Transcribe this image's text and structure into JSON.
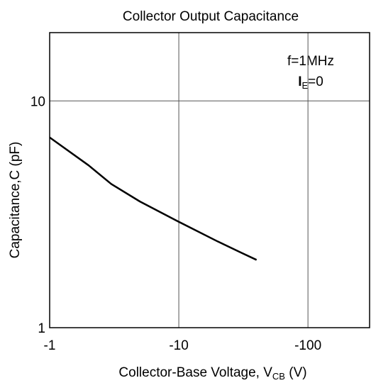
{
  "chart_data": {
    "type": "line",
    "title": "Collector Output Capacitance",
    "xlabel": [
      "Collector-Base Voltage, V",
      "CB",
      " (V)"
    ],
    "ylabel": "Capacitance,C (pF)",
    "annotations": [
      "f=1MHz",
      [
        "I",
        "E",
        "=0"
      ]
    ],
    "xscale": "log",
    "yscale": "log",
    "xlim": [
      -1,
      -300
    ],
    "ylim": [
      1,
      20
    ],
    "xticks": [
      -1,
      -10,
      -100
    ],
    "yticks": [
      1,
      10
    ],
    "grid": true,
    "x": [
      -1,
      -2,
      -3,
      -5,
      -10,
      -20,
      -30,
      -40
    ],
    "series": [
      {
        "color": "#000000",
        "values": [
          6.9,
          5.2,
          4.3,
          3.6,
          2.93,
          2.4,
          2.15,
          1.99
        ]
      }
    ]
  }
}
